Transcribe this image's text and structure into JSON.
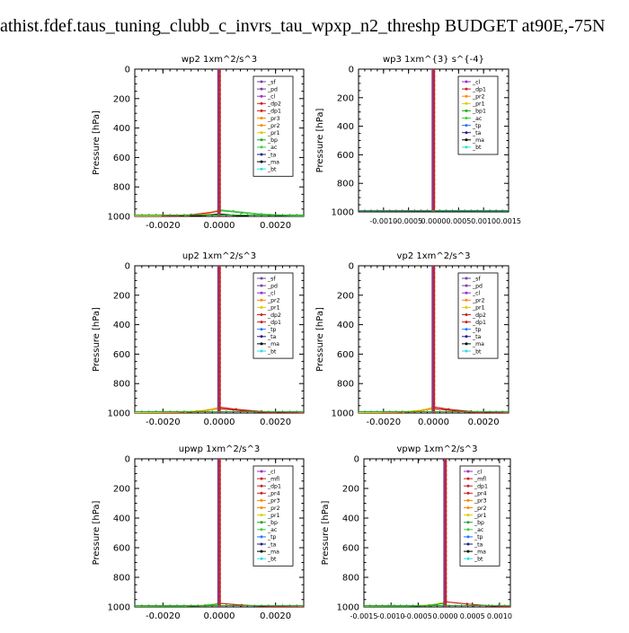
{
  "page_title": "athist.fdef.taus_tuning_clubb_c_invrs_tau_wpxp_n2_threshp  BUDGET at90E,-75N",
  "colors": {
    "_sf": "#7a3fa0",
    "_pd": "#7a3fa0",
    "_cl": "#9b30c8",
    "_dp2": "#cc2222",
    "_dp1": "#cc2222",
    "_pr4": "#cc2222",
    "_pr3": "#ff8800",
    "_pr2": "#ff8800",
    "_pr1": "#ddcc00",
    "_bp": "#22aa22",
    "_bp1": "#22aa22",
    "_ac": "#44cc44",
    "_tp": "#2277ff",
    "_ta": "#222288",
    "_ma": "#000000",
    "_bt": "#33dddd",
    "_mfl": "#cc2222"
  },
  "chart_data": [
    {
      "type": "line",
      "title": "wp2   1xm^2/s^3",
      "ylabel": "Pressure [hPa]",
      "ylim": [
        1000,
        0
      ],
      "xlim": [
        -0.003,
        0.003
      ],
      "xticks": [
        "-0.0020",
        "0.0000",
        "0.0020"
      ],
      "yticks": [
        "0",
        "200",
        "400",
        "600",
        "800",
        "1000"
      ],
      "legend": [
        "_sf",
        "_pd",
        "_cl",
        "_dp2",
        "_dp1",
        "_pr3",
        "_pr2",
        "_pr1",
        "_bp",
        "_ac",
        "_ta",
        "_ma",
        "_bt"
      ],
      "series": [
        {
          "name": "_pr2",
          "x": [
            -0.003,
            -0.0015,
            -0.0005,
            0.0
          ],
          "y": [
            1000,
            995,
            985,
            960
          ]
        },
        {
          "name": "_pr1",
          "x": [
            -0.003,
            -0.0012,
            -0.0004,
            0.0
          ],
          "y": [
            1000,
            992,
            978,
            955
          ]
        },
        {
          "name": "_bp",
          "x": [
            0.0,
            0.0008,
            0.0018,
            0.003
          ],
          "y": [
            960,
            975,
            990,
            1000
          ]
        },
        {
          "name": "_ac",
          "x": [
            0.0,
            0.0005,
            0.0015,
            0.003
          ],
          "y": [
            955,
            965,
            985,
            998
          ]
        },
        {
          "name": "_dp1",
          "x": [
            -0.002,
            -0.001,
            0.0
          ],
          "y": [
            1000,
            990,
            965
          ]
        },
        {
          "name": "_ma",
          "x": [
            -0.001,
            0.0,
            0.001
          ],
          "y": [
            998,
            985,
            998
          ]
        }
      ]
    },
    {
      "type": "line",
      "title": "wp3   1xm^{3} s^{-4}",
      "ylabel": "Pressure [hPa]",
      "ylim": [
        1000,
        0
      ],
      "xlim": [
        -0.0015,
        0.0015
      ],
      "xticks": [
        "-0.0010",
        "-0.0005",
        "0.0000",
        "0.0005",
        "0.0010",
        "0.0015"
      ],
      "yticks": [
        "0",
        "200",
        "400",
        "600",
        "800",
        "1000"
      ],
      "legend": [
        "_cl",
        "_dp1",
        "_pr2",
        "_pr1",
        "_bp1",
        "_ac",
        "_tp",
        "_ta",
        "_ma",
        "_bt"
      ],
      "series": [
        {
          "name": "_dp1",
          "x": [
            -0.0015,
            -0.0005,
            0.0
          ],
          "y": [
            1000,
            998,
            995
          ]
        },
        {
          "name": "_bp1",
          "x": [
            0.0,
            0.0008,
            0.0015
          ],
          "y": [
            995,
            998,
            1000
          ]
        },
        {
          "name": "_ta",
          "x": [
            -0.0015,
            0.0015
          ],
          "y": [
            999,
            999
          ]
        }
      ]
    },
    {
      "type": "line",
      "title": "up2   1xm^2/s^3",
      "ylabel": "Pressure [hPa]",
      "ylim": [
        1000,
        0
      ],
      "xlim": [
        -0.003,
        0.003
      ],
      "xticks": [
        "-0.0020",
        "0.0000",
        "0.0020"
      ],
      "yticks": [
        "0",
        "200",
        "400",
        "600",
        "800",
        "1000"
      ],
      "legend": [
        "_sf",
        "_pd",
        "_cl",
        "_pr2",
        "_pr1",
        "_dp2",
        "_dp1",
        "_tp",
        "_ta",
        "_ma",
        "_bt"
      ],
      "series": [
        {
          "name": "_pr1",
          "x": [
            -0.003,
            -0.0012,
            -0.0004,
            0.0
          ],
          "y": [
            1000,
            992,
            980,
            960
          ]
        },
        {
          "name": "_dp1",
          "x": [
            0.0,
            0.0006,
            0.0015,
            0.003
          ],
          "y": [
            960,
            975,
            990,
            1000
          ]
        },
        {
          "name": "_pr2",
          "x": [
            -0.002,
            -0.0008,
            0.0
          ],
          "y": [
            1000,
            990,
            970
          ]
        },
        {
          "name": "_dp2",
          "x": [
            0.0,
            0.001,
            0.002
          ],
          "y": [
            970,
            988,
            1000
          ]
        }
      ]
    },
    {
      "type": "line",
      "title": "vp2   1xm^2/s^3",
      "ylabel": "Pressure [hPa]",
      "ylim": [
        1000,
        0
      ],
      "xlim": [
        -0.003,
        0.003
      ],
      "xticks": [
        "-0.0020",
        "0.0000",
        "0.0020"
      ],
      "yticks": [
        "0",
        "200",
        "400",
        "600",
        "800",
        "1000"
      ],
      "legend": [
        "_sf",
        "_pd",
        "_cl",
        "_pr2",
        "_pr1",
        "_dp2",
        "_dp1",
        "_tp",
        "_ta",
        "_ma",
        "_bt"
      ],
      "series": [
        {
          "name": "_pr1",
          "x": [
            -0.003,
            -0.0012,
            -0.0004,
            0.0
          ],
          "y": [
            1000,
            992,
            980,
            958
          ]
        },
        {
          "name": "_dp1",
          "x": [
            0.0,
            0.0006,
            0.0015,
            0.003
          ],
          "y": [
            958,
            975,
            990,
            1000
          ]
        },
        {
          "name": "_pr2",
          "x": [
            -0.002,
            -0.0008,
            0.0
          ],
          "y": [
            1000,
            990,
            970
          ]
        },
        {
          "name": "_dp2",
          "x": [
            0.0,
            0.001,
            0.002
          ],
          "y": [
            970,
            988,
            1000
          ]
        }
      ]
    },
    {
      "type": "line",
      "title": "upwp   1xm^2/s^3",
      "ylabel": "Pressure [hPa]",
      "ylim": [
        1000,
        0
      ],
      "xlim": [
        -0.003,
        0.003
      ],
      "xticks": [
        "-0.0020",
        "0.0000",
        "0.0020"
      ],
      "yticks": [
        "0",
        "200",
        "400",
        "600",
        "800",
        "1000"
      ],
      "legend": [
        "_cl",
        "_mfl",
        "_dp1",
        "_pr4",
        "_pr3",
        "_pr2",
        "_pr1",
        "_bp",
        "_ac",
        "_tp",
        "_ta",
        "_ma",
        "_bt"
      ],
      "series": [
        {
          "name": "_pr1",
          "x": [
            -0.003,
            -0.0012,
            -0.0004,
            0.0
          ],
          "y": [
            1000,
            995,
            988,
            975
          ]
        },
        {
          "name": "_bp",
          "x": [
            -0.003,
            -0.0015,
            -0.0005,
            0.0
          ],
          "y": [
            1000,
            997,
            990,
            980
          ]
        },
        {
          "name": "_mfl",
          "x": [
            0.0,
            0.0008,
            0.0018,
            0.003
          ],
          "y": [
            975,
            988,
            996,
            1000
          ]
        }
      ]
    },
    {
      "type": "line",
      "title": "vpwp   1xm^2/s^3",
      "ylabel": "Pressure [hPa]",
      "ylim": [
        1000,
        0
      ],
      "xlim": [
        -0.0015,
        0.0012
      ],
      "xticks": [
        "-0.0015",
        "-0.0010",
        "-0.0005",
        "0.0000",
        "0.0005",
        "0.0010"
      ],
      "yticks": [
        "0",
        "200",
        "400",
        "600",
        "800",
        "1000"
      ],
      "legend": [
        "_cl",
        "_mfl",
        "_dp1",
        "_pr4",
        "_pr3",
        "_pr2",
        "_pr1",
        "_bp",
        "_ac",
        "_tp",
        "_ta",
        "_ma",
        "_bt"
      ],
      "series": [
        {
          "name": "_pr1",
          "x": [
            -0.0015,
            -0.0007,
            -0.0002,
            0.0
          ],
          "y": [
            1000,
            995,
            985,
            965
          ]
        },
        {
          "name": "_bp",
          "x": [
            -0.0015,
            -0.0008,
            -0.0003,
            0.0
          ],
          "y": [
            1000,
            997,
            990,
            975
          ]
        },
        {
          "name": "_mfl",
          "x": [
            0.0,
            0.0004,
            0.0008,
            0.0012
          ],
          "y": [
            965,
            980,
            992,
            998
          ]
        }
      ]
    }
  ]
}
